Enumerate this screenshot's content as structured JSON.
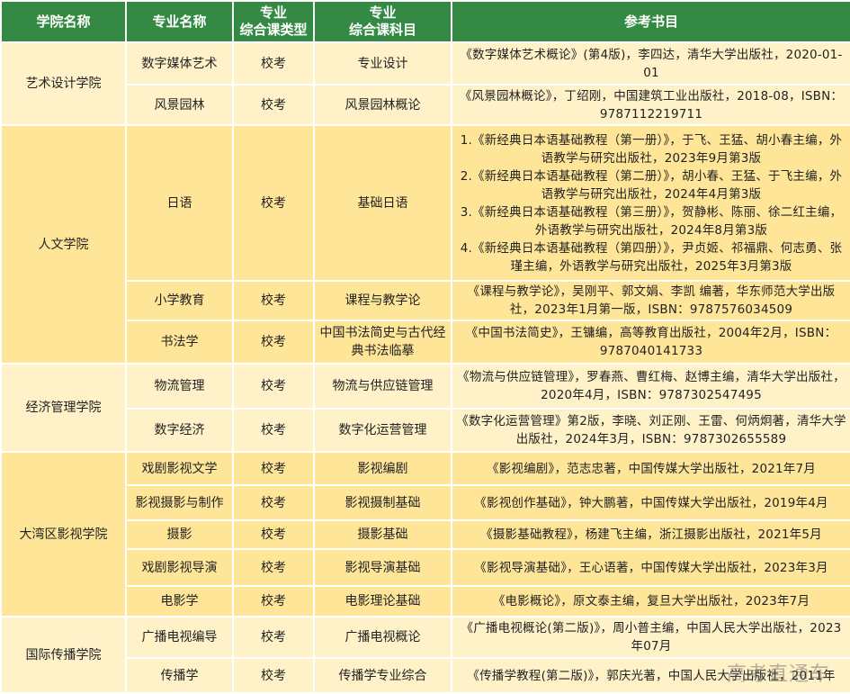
{
  "headers": [
    "学院名称",
    "专业名称",
    "专业\n综合课类型",
    "专业\n综合课科目",
    "参考书目"
  ],
  "colors": {
    "header": "#348a44",
    "row_light": "#fff2c9",
    "row_dark": "#ffe598"
  },
  "groups": [
    {
      "college": "艺术设计学院",
      "rows": [
        {
          "major": "数字媒体艺术",
          "type": "校考",
          "subject": "专业设计",
          "refs": [
            "《数字媒体艺术概论》(第4版)，李四达，清华大学出版社，2020-01-01"
          ]
        },
        {
          "major": "风景园林",
          "type": "校考",
          "subject": "风景园林概论",
          "refs": [
            "《风景园林概论》，丁绍刚，中国建筑工业出版社，2018-08，ISBN：9787112219711"
          ]
        }
      ]
    },
    {
      "college": "人文学院",
      "rows": [
        {
          "major": "日语",
          "type": "校考",
          "subject": "基础日语",
          "refs": [
            "1.《新经典日本语基础教程（第一册）》，于飞、王猛、胡小春主编，外语教学与研究出版社，2023年9月第3版",
            "2.《新经典日本语基础教程（第二册）》，胡小春、王猛、于飞主编，外语教学与研究出版社，2024年4月第3版",
            "3.《新经典日本语基础教程（第三册）》，贺静彬、陈丽、徐二红主编，外语教学与研究出版社，2024年8月第3版",
            "4.《新经典日本语基础教程（第四册）》，尹贞姬、祁福鼎、何志勇、张瑾主编，外语教学与研究出版社，2025年3月第3版"
          ]
        },
        {
          "major": "小学教育",
          "type": "校考",
          "subject": "课程与教学论",
          "refs": [
            "《课程与教学论》，吴刚平、郭文娟、李凯 编著，华东师范大学出版社，2023年1月第一版，ISBN：9787576034509"
          ]
        },
        {
          "major": "书法学",
          "type": "校考",
          "subject": "中国书法简史与古代经典书法临摹",
          "refs": [
            "《中国书法简史》，王镛编，高等教育出版社，2004年2月，ISBN：9787040141733"
          ]
        }
      ]
    },
    {
      "college": "经济管理学院",
      "rows": [
        {
          "major": "物流管理",
          "type": "校考",
          "subject": "物流与供应链管理",
          "refs": [
            "《物流与供应链管理》，罗春燕、曹红梅、赵博主编，清华大学出版社，2020年4月，ISBN：9787302547495"
          ]
        },
        {
          "major": "数字经济",
          "type": "校考",
          "subject": "数字化运营管理",
          "refs": [
            "《数字化运营管理》第2版，李晓、刘正刚、王雷、何炳炯著，清华大学出版社，2024年3月，ISBN：9787302655589"
          ]
        }
      ]
    },
    {
      "college": "大湾区影视学院",
      "rows": [
        {
          "major": "戏剧影视文学",
          "type": "校考",
          "subject": "影视编剧",
          "refs": [
            "《影视编剧》，范志忠著，中国传媒大学出版社，2021年7月"
          ]
        },
        {
          "major": "影视摄影与制作",
          "type": "校考",
          "subject": "影视摄制基础",
          "refs": [
            "《影视创作基础》，钟大鹏著，中国传媒大学出版社，2019年4月"
          ]
        },
        {
          "major": "摄影",
          "type": "校考",
          "subject": "摄影基础",
          "refs": [
            "《摄影基础教程》，杨建飞主编，浙江摄影出版社，2021年5月"
          ]
        },
        {
          "major": "戏剧影视导演",
          "type": "校考",
          "subject": "影视导演基础",
          "refs": [
            "《影视导演基础》，王心语著，中国传媒大学出版社，2023年3月"
          ]
        },
        {
          "major": "电影学",
          "type": "校考",
          "subject": "电影理论基础",
          "refs": [
            "《电影概论》，原文泰主编，复旦大学出版社，2023年7月"
          ]
        }
      ]
    },
    {
      "college": "国际传播学院",
      "rows": [
        {
          "major": "广播电视编导",
          "type": "校考",
          "subject": "广播电视概论",
          "refs": [
            "《广播电视概论(第二版)》，周小普主编，中国人民大学出版社，2023年07月"
          ]
        },
        {
          "major": "传播学",
          "type": "校考",
          "subject": "传播学专业综合",
          "refs": [
            "《传播学教程(第二版)》，郭庆光著，中国人民大学出版社，2011年"
          ]
        }
      ]
    }
  ],
  "watermark": "高考直通车"
}
